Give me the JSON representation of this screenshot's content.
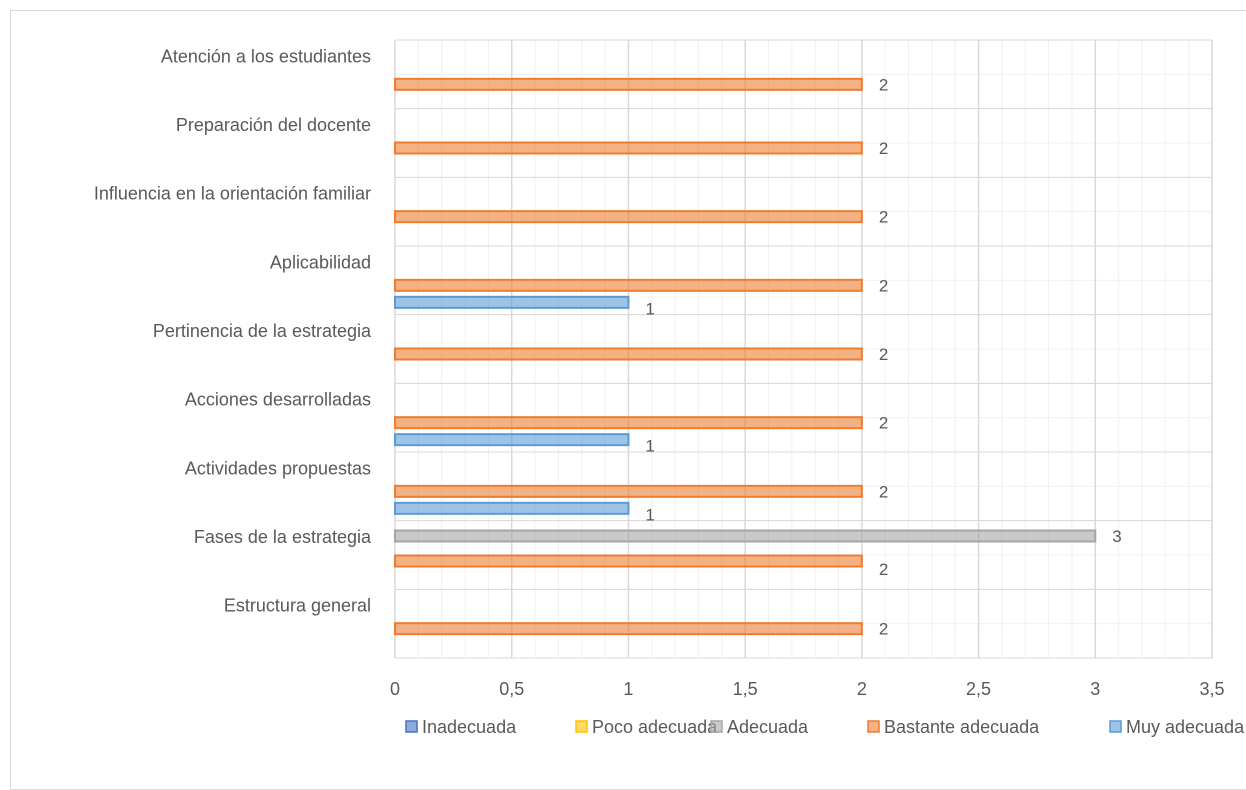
{
  "chart_data": {
    "type": "bar",
    "orientation": "horizontal",
    "categories": [
      "Atención a los estudiantes",
      "Preparación del docente",
      "Influencia en la orientación familiar",
      "Aplicabilidad",
      "Pertinencia de la estrategia",
      "Acciones desarrolladas",
      "Actividades propuestas",
      "Fases de la estrategia",
      "Estructura general"
    ],
    "series": [
      {
        "name": "Inadecuada",
        "color": "#4472c4",
        "values": [
          null,
          null,
          null,
          null,
          null,
          null,
          null,
          null,
          null
        ]
      },
      {
        "name": "Poco adecuada",
        "color": "#ffc000",
        "values": [
          null,
          null,
          null,
          null,
          null,
          null,
          null,
          null,
          null
        ]
      },
      {
        "name": "Adecuada",
        "color": "#a5a5a5",
        "values": [
          null,
          null,
          null,
          null,
          null,
          null,
          null,
          3,
          null
        ]
      },
      {
        "name": "Bastante adecuada",
        "color": "#ed7d31",
        "values": [
          2,
          2,
          2,
          2,
          2,
          2,
          2,
          2,
          2
        ]
      },
      {
        "name": "Muy adecuada",
        "color": "#5b9bd5",
        "values": [
          null,
          null,
          null,
          1,
          null,
          1,
          1,
          null,
          null
        ]
      }
    ],
    "x_ticks": [
      "0",
      "0,5",
      "1",
      "1,5",
      "2",
      "2,5",
      "3",
      "3,5"
    ],
    "xlim": [
      0,
      3.5
    ],
    "grid": true,
    "legend_position": "bottom"
  }
}
